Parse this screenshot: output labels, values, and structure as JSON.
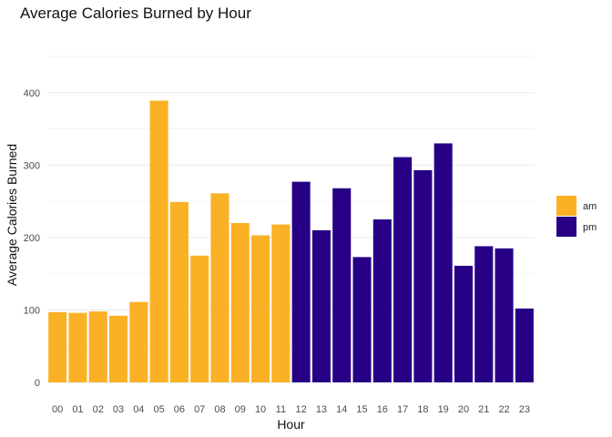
{
  "chart_data": {
    "type": "bar",
    "title": "Average Calories Burned by Hour",
    "xlabel": "Hour",
    "ylabel": "Average Calories Burned",
    "categories": [
      "00",
      "01",
      "02",
      "03",
      "04",
      "05",
      "06",
      "07",
      "08",
      "09",
      "10",
      "11",
      "12",
      "13",
      "14",
      "15",
      "16",
      "17",
      "18",
      "19",
      "20",
      "21",
      "22",
      "23"
    ],
    "values": [
      97,
      96,
      98,
      92,
      111,
      389,
      249,
      175,
      261,
      220,
      203,
      218,
      277,
      210,
      268,
      173,
      225,
      311,
      293,
      330,
      161,
      188,
      185,
      102
    ],
    "groups": [
      "am",
      "am",
      "am",
      "am",
      "am",
      "am",
      "am",
      "am",
      "am",
      "am",
      "am",
      "am",
      "pm",
      "pm",
      "pm",
      "pm",
      "pm",
      "pm",
      "pm",
      "pm",
      "pm",
      "pm",
      "pm",
      "pm"
    ],
    "yticks": [
      0,
      100,
      200,
      300,
      400
    ],
    "ylim": [
      0,
      450
    ],
    "grid": true,
    "legend": {
      "placement": "right",
      "items": [
        {
          "name": "am",
          "color": "#FBB125"
        },
        {
          "name": "pm",
          "color": "#270085"
        }
      ]
    }
  }
}
